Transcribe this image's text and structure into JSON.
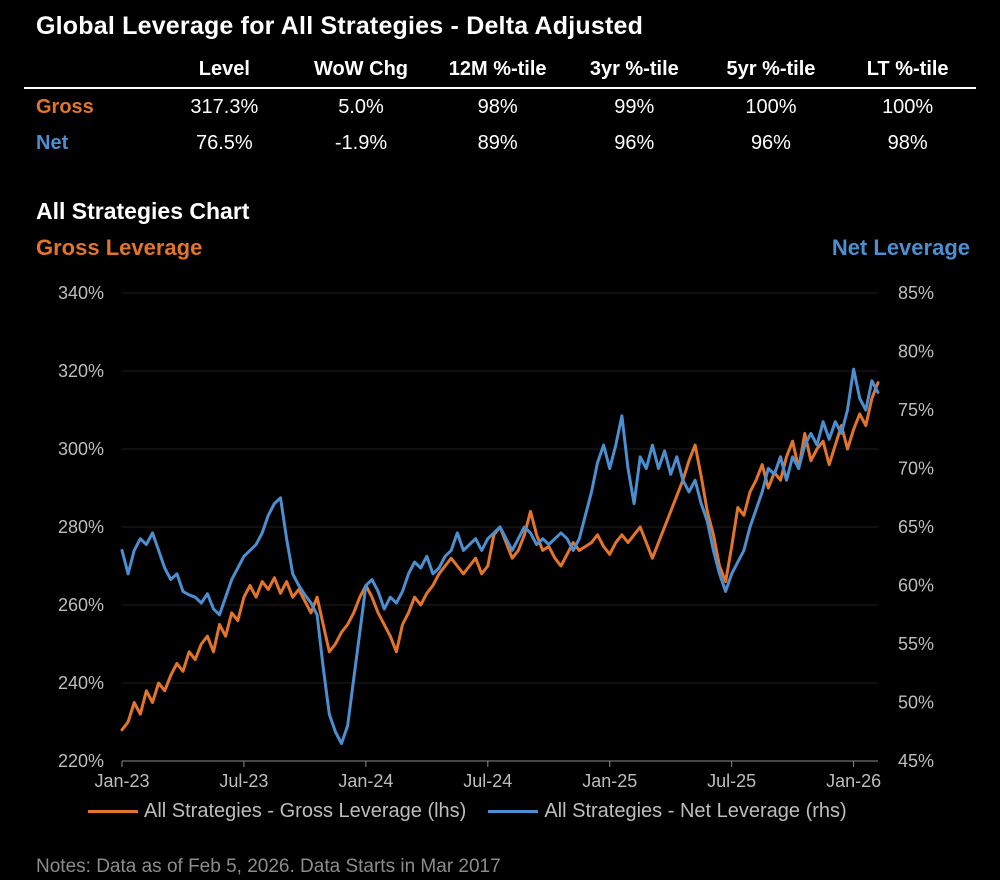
{
  "title": "Global Leverage for All Strategies - Delta Adjusted",
  "colors": {
    "gross": "#e2752a",
    "net": "#4b8fd0",
    "background": "#000000"
  },
  "table": {
    "headers": [
      "Level",
      "WoW Chg",
      "12M %-tile",
      "3yr %-tile",
      "5yr %-tile",
      "LT %-tile"
    ],
    "rows": [
      {
        "label": "Gross",
        "values": [
          "317.3%",
          "5.0%",
          "98%",
          "99%",
          "100%",
          "100%"
        ]
      },
      {
        "label": "Net",
        "values": [
          "76.5%",
          "-1.9%",
          "89%",
          "96%",
          "96%",
          "98%"
        ]
      }
    ]
  },
  "chart_title": "All Strategies Chart",
  "left_axis_title": "Gross Leverage",
  "right_axis_title": "Net Leverage",
  "chart_data": {
    "type": "line",
    "title": "All Strategies Chart",
    "x_labels": [
      "Jan-23",
      "Jul-23",
      "Jan-24",
      "Jul-24",
      "Jan-25",
      "Jul-25",
      "Jan-26"
    ],
    "x_range_months": [
      0,
      37.2
    ],
    "ylim_left": [
      220,
      340
    ],
    "yticks_left": [
      "220%",
      "240%",
      "260%",
      "280%",
      "300%",
      "320%",
      "340%"
    ],
    "ylim_right": [
      45,
      85
    ],
    "yticks_right": [
      "45%",
      "50%",
      "55%",
      "60%",
      "65%",
      "70%",
      "75%",
      "80%",
      "85%"
    ],
    "series": [
      {
        "name": "All Strategies - Gross Leverage (lhs)",
        "axis": "left",
        "points": [
          [
            0,
            228
          ],
          [
            0.3,
            230
          ],
          [
            0.6,
            235
          ],
          [
            0.9,
            232
          ],
          [
            1.2,
            238
          ],
          [
            1.5,
            235
          ],
          [
            1.8,
            240
          ],
          [
            2.1,
            238
          ],
          [
            2.4,
            242
          ],
          [
            2.7,
            245
          ],
          [
            3,
            243
          ],
          [
            3.3,
            248
          ],
          [
            3.6,
            246
          ],
          [
            3.9,
            250
          ],
          [
            4.2,
            252
          ],
          [
            4.5,
            248
          ],
          [
            4.8,
            255
          ],
          [
            5.1,
            252
          ],
          [
            5.4,
            258
          ],
          [
            5.7,
            256
          ],
          [
            6,
            262
          ],
          [
            6.3,
            265
          ],
          [
            6.6,
            262
          ],
          [
            6.9,
            266
          ],
          [
            7.2,
            264
          ],
          [
            7.5,
            267
          ],
          [
            7.8,
            263
          ],
          [
            8.1,
            266
          ],
          [
            8.4,
            262
          ],
          [
            8.7,
            264
          ],
          [
            9,
            261
          ],
          [
            9.3,
            258
          ],
          [
            9.6,
            262
          ],
          [
            9.9,
            255
          ],
          [
            10.2,
            248
          ],
          [
            10.5,
            250
          ],
          [
            10.8,
            253
          ],
          [
            11.1,
            255
          ],
          [
            11.4,
            258
          ],
          [
            11.7,
            262
          ],
          [
            12,
            265
          ],
          [
            12.3,
            262
          ],
          [
            12.6,
            258
          ],
          [
            12.9,
            255
          ],
          [
            13.2,
            252
          ],
          [
            13.5,
            248
          ],
          [
            13.8,
            255
          ],
          [
            14.1,
            258
          ],
          [
            14.4,
            262
          ],
          [
            14.7,
            260
          ],
          [
            15,
            263
          ],
          [
            15.3,
            265
          ],
          [
            15.6,
            268
          ],
          [
            15.9,
            270
          ],
          [
            16.2,
            272
          ],
          [
            16.5,
            270
          ],
          [
            16.8,
            268
          ],
          [
            17.1,
            270
          ],
          [
            17.4,
            272
          ],
          [
            17.7,
            268
          ],
          [
            18,
            270
          ],
          [
            18.3,
            278
          ],
          [
            18.6,
            280
          ],
          [
            18.9,
            276
          ],
          [
            19.2,
            272
          ],
          [
            19.5,
            274
          ],
          [
            19.8,
            278
          ],
          [
            20.1,
            284
          ],
          [
            20.4,
            278
          ],
          [
            20.7,
            274
          ],
          [
            21,
            275
          ],
          [
            21.3,
            272
          ],
          [
            21.6,
            270
          ],
          [
            21.9,
            273
          ],
          [
            22.2,
            276
          ],
          [
            22.5,
            274
          ],
          [
            22.8,
            275
          ],
          [
            23.1,
            276
          ],
          [
            23.4,
            278
          ],
          [
            23.7,
            275
          ],
          [
            24,
            273
          ],
          [
            24.3,
            276
          ],
          [
            24.6,
            278
          ],
          [
            24.9,
            276
          ],
          [
            25.2,
            278
          ],
          [
            25.5,
            280
          ],
          [
            25.8,
            276
          ],
          [
            26.1,
            272
          ],
          [
            26.4,
            276
          ],
          [
            26.7,
            280
          ],
          [
            27,
            284
          ],
          [
            27.3,
            288
          ],
          [
            27.6,
            292
          ],
          [
            27.9,
            297
          ],
          [
            28.2,
            301
          ],
          [
            28.5,
            293
          ],
          [
            28.8,
            284
          ],
          [
            29.1,
            278
          ],
          [
            29.4,
            270
          ],
          [
            29.7,
            266
          ],
          [
            30,
            275
          ],
          [
            30.3,
            285
          ],
          [
            30.6,
            283
          ],
          [
            30.9,
            289
          ],
          [
            31.2,
            292
          ],
          [
            31.5,
            296
          ],
          [
            31.8,
            290
          ],
          [
            32.1,
            294
          ],
          [
            32.4,
            292
          ],
          [
            32.7,
            298
          ],
          [
            33,
            302
          ],
          [
            33.3,
            295
          ],
          [
            33.6,
            304
          ],
          [
            33.9,
            297
          ],
          [
            34.2,
            300
          ],
          [
            34.5,
            302
          ],
          [
            34.8,
            296
          ],
          [
            35.1,
            301
          ],
          [
            35.4,
            306
          ],
          [
            35.7,
            300
          ],
          [
            36,
            305
          ],
          [
            36.3,
            309
          ],
          [
            36.6,
            306
          ],
          [
            36.9,
            313
          ],
          [
            37.2,
            317
          ]
        ]
      },
      {
        "name": "All Strategies - Net Leverage (rhs)",
        "axis": "right",
        "points": [
          [
            0,
            63
          ],
          [
            0.3,
            61
          ],
          [
            0.6,
            63
          ],
          [
            0.9,
            64
          ],
          [
            1.2,
            63.5
          ],
          [
            1.5,
            64.5
          ],
          [
            1.8,
            63
          ],
          [
            2.1,
            61.5
          ],
          [
            2.4,
            60.5
          ],
          [
            2.7,
            61
          ],
          [
            3,
            59.5
          ],
          [
            3.3,
            59.2
          ],
          [
            3.6,
            59
          ],
          [
            3.9,
            58.5
          ],
          [
            4.2,
            59.3
          ],
          [
            4.5,
            58
          ],
          [
            4.8,
            57.5
          ],
          [
            5.1,
            59
          ],
          [
            5.4,
            60.5
          ],
          [
            5.7,
            61.5
          ],
          [
            6,
            62.5
          ],
          [
            6.3,
            63
          ],
          [
            6.6,
            63.5
          ],
          [
            6.9,
            64.5
          ],
          [
            7.2,
            66
          ],
          [
            7.5,
            67
          ],
          [
            7.8,
            67.5
          ],
          [
            8.1,
            64
          ],
          [
            8.4,
            61
          ],
          [
            8.7,
            60
          ],
          [
            9,
            59.2
          ],
          [
            9.3,
            58.5
          ],
          [
            9.6,
            57.5
          ],
          [
            9.9,
            53
          ],
          [
            10.2,
            49
          ],
          [
            10.5,
            47.5
          ],
          [
            10.8,
            46.5
          ],
          [
            11.1,
            48
          ],
          [
            11.4,
            52
          ],
          [
            11.7,
            56
          ],
          [
            12,
            60
          ],
          [
            12.3,
            60.5
          ],
          [
            12.6,
            59.5
          ],
          [
            12.9,
            58
          ],
          [
            13.2,
            59
          ],
          [
            13.5,
            58.5
          ],
          [
            13.8,
            59.5
          ],
          [
            14.1,
            61
          ],
          [
            14.4,
            62
          ],
          [
            14.7,
            61.5
          ],
          [
            15,
            62.5
          ],
          [
            15.3,
            61
          ],
          [
            15.6,
            61.5
          ],
          [
            15.9,
            62.5
          ],
          [
            16.2,
            63
          ],
          [
            16.5,
            64.5
          ],
          [
            16.8,
            63
          ],
          [
            17.1,
            63.5
          ],
          [
            17.4,
            64
          ],
          [
            17.7,
            63
          ],
          [
            18,
            64
          ],
          [
            18.3,
            64.5
          ],
          [
            18.6,
            65
          ],
          [
            18.9,
            64
          ],
          [
            19.2,
            63
          ],
          [
            19.5,
            64
          ],
          [
            19.8,
            65
          ],
          [
            20.1,
            64.5
          ],
          [
            20.4,
            63.5
          ],
          [
            20.7,
            64
          ],
          [
            21,
            63.5
          ],
          [
            21.3,
            64
          ],
          [
            21.6,
            64.5
          ],
          [
            21.9,
            64
          ],
          [
            22.2,
            63
          ],
          [
            22.5,
            64
          ],
          [
            22.8,
            66
          ],
          [
            23.1,
            68
          ],
          [
            23.4,
            70.5
          ],
          [
            23.7,
            72
          ],
          [
            24,
            70
          ],
          [
            24.3,
            72
          ],
          [
            24.6,
            74.5
          ],
          [
            24.9,
            70
          ],
          [
            25.2,
            67
          ],
          [
            25.5,
            71
          ],
          [
            25.8,
            70
          ],
          [
            26.1,
            72
          ],
          [
            26.4,
            70
          ],
          [
            26.7,
            71.5
          ],
          [
            27,
            69.5
          ],
          [
            27.3,
            71
          ],
          [
            27.6,
            69
          ],
          [
            27.9,
            68
          ],
          [
            28.2,
            69
          ],
          [
            28.5,
            67
          ],
          [
            28.8,
            65.5
          ],
          [
            29.1,
            63
          ],
          [
            29.4,
            61
          ],
          [
            29.7,
            59.5
          ],
          [
            30,
            61
          ],
          [
            30.3,
            62
          ],
          [
            30.6,
            63
          ],
          [
            30.9,
            65
          ],
          [
            31.2,
            66.5
          ],
          [
            31.5,
            68
          ],
          [
            31.8,
            70
          ],
          [
            32.1,
            69.5
          ],
          [
            32.4,
            71
          ],
          [
            32.7,
            69
          ],
          [
            33,
            71
          ],
          [
            33.3,
            70
          ],
          [
            33.6,
            72
          ],
          [
            33.9,
            73
          ],
          [
            34.2,
            72
          ],
          [
            34.5,
            74
          ],
          [
            34.8,
            72.5
          ],
          [
            35.1,
            74
          ],
          [
            35.4,
            73
          ],
          [
            35.7,
            75
          ],
          [
            36,
            78.5
          ],
          [
            36.3,
            76
          ],
          [
            36.6,
            75
          ],
          [
            36.9,
            77.5
          ],
          [
            37.2,
            76.5
          ]
        ]
      }
    ]
  },
  "legend": {
    "gross_label": "All Strategies - Gross Leverage (lhs)",
    "net_label": "All Strategies - Net Leverage (rhs)"
  },
  "notes": "Notes: Data as of Feb 5, 2026. Data Starts in Mar 2017"
}
